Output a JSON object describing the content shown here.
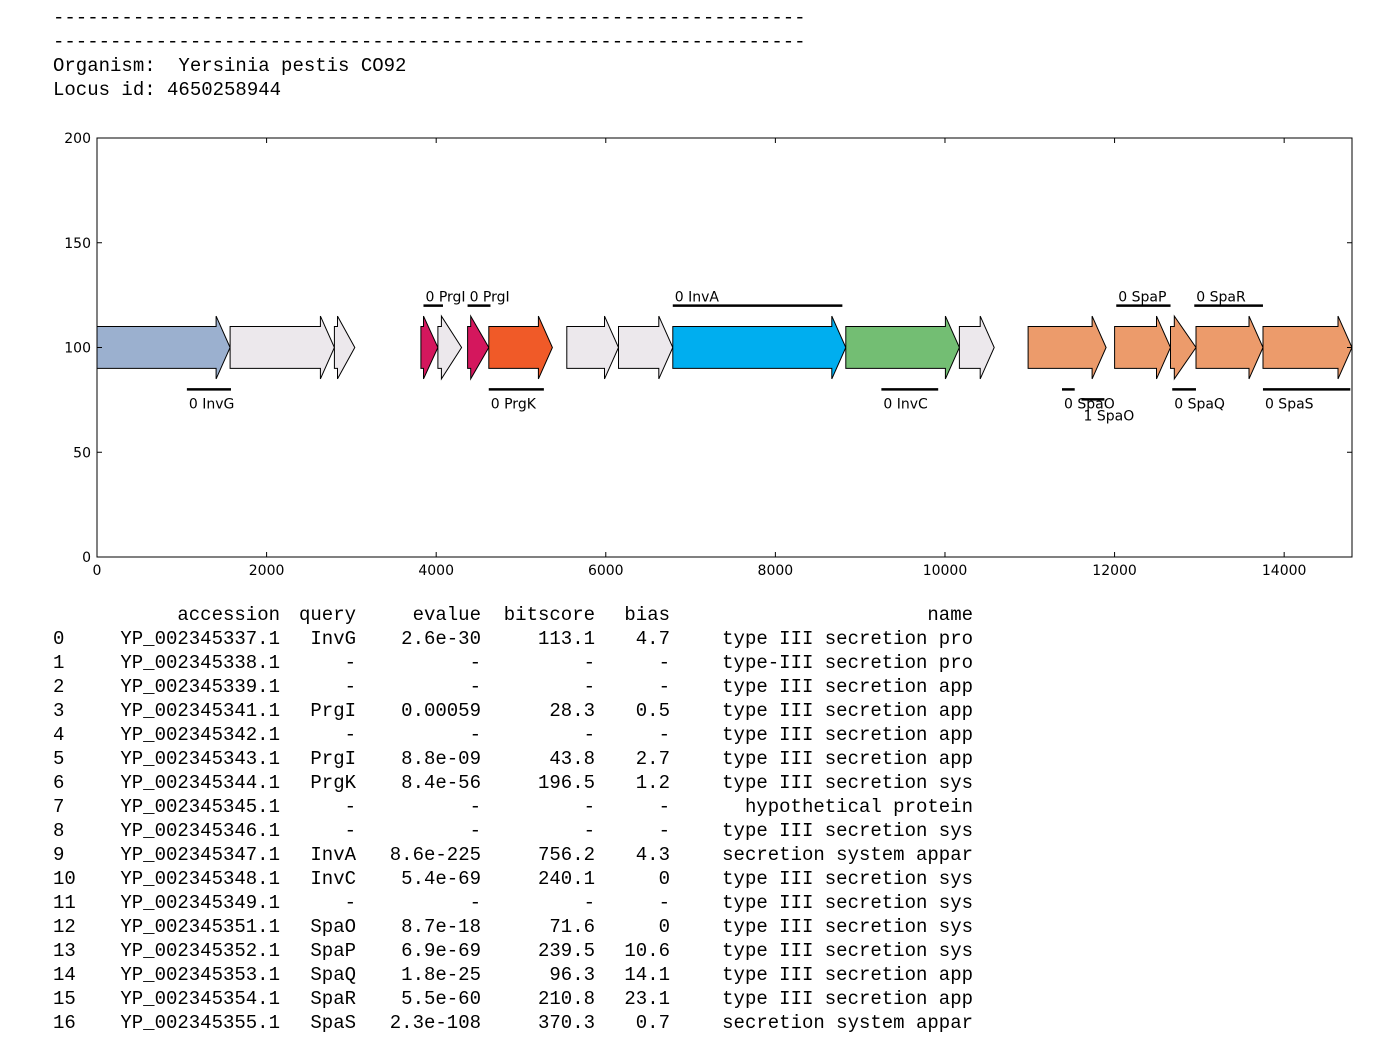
{
  "header": {
    "separator1": "------------------------------------------------------------------",
    "separator2": "------------------------------------------------------------------",
    "organism_line": "Organism:  Yersinia pestis CO92",
    "locus_line": "Locus id: 4650258944"
  },
  "chart_data": {
    "type": "gene-arrow-map",
    "title": "",
    "xlabel": "",
    "ylabel": "",
    "xlim": [
      0,
      14800
    ],
    "ylim": [
      0,
      200
    ],
    "xticks": [
      0,
      2000,
      4000,
      6000,
      8000,
      10000,
      12000,
      14000
    ],
    "yticks": [
      0,
      50,
      100,
      150,
      200
    ],
    "grid": false,
    "genes": [
      {
        "start": 0,
        "end": 1570,
        "color": "#9bb0cf",
        "strand": "+"
      },
      {
        "start": 1570,
        "end": 2800,
        "color": "#ece8ec",
        "strand": "+"
      },
      {
        "start": 2800,
        "end": 3040,
        "color": "#ece8ec",
        "strand": "+"
      },
      {
        "start": 3820,
        "end": 4020,
        "color": "#d4175d",
        "strand": "+"
      },
      {
        "start": 4020,
        "end": 4300,
        "color": "#ece8ec",
        "strand": "+"
      },
      {
        "start": 4370,
        "end": 4620,
        "color": "#d4175d",
        "strand": "+"
      },
      {
        "start": 4620,
        "end": 5370,
        "color": "#f05a28",
        "strand": "+"
      },
      {
        "start": 5540,
        "end": 6150,
        "color": "#ece8ec",
        "strand": "+"
      },
      {
        "start": 6150,
        "end": 6790,
        "color": "#ece8ec",
        "strand": "+"
      },
      {
        "start": 6790,
        "end": 8830,
        "color": "#00aeef",
        "strand": "+"
      },
      {
        "start": 8830,
        "end": 10170,
        "color": "#73be73",
        "strand": "+"
      },
      {
        "start": 10170,
        "end": 10580,
        "color": "#ece8ec",
        "strand": "+"
      },
      {
        "start": 10980,
        "end": 11900,
        "color": "#ec9b6b",
        "strand": "+"
      },
      {
        "start": 12000,
        "end": 12660,
        "color": "#ec9b6b",
        "strand": "+"
      },
      {
        "start": 12660,
        "end": 12960,
        "color": "#ec9b6b",
        "strand": "+"
      },
      {
        "start": 12960,
        "end": 13750,
        "color": "#ec9b6b",
        "strand": "+"
      },
      {
        "start": 13750,
        "end": 14800,
        "color": "#ec9b6b",
        "strand": "+"
      }
    ],
    "domain_hits": [
      {
        "label": "0 InvG",
        "start": 1060,
        "end": 1580,
        "side": "below",
        "row": 0
      },
      {
        "label": "0 PrgI",
        "start": 3850,
        "end": 4080,
        "side": "above",
        "row": 0
      },
      {
        "label": "0 PrgI",
        "start": 4370,
        "end": 4640,
        "side": "above",
        "row": 0
      },
      {
        "label": "0 PrgK",
        "start": 4620,
        "end": 5270,
        "side": "below",
        "row": 0
      },
      {
        "label": "0 InvA",
        "start": 6790,
        "end": 8790,
        "side": "above",
        "row": 0
      },
      {
        "label": "0 InvC",
        "start": 9250,
        "end": 9920,
        "side": "below",
        "row": 0
      },
      {
        "label": "0 SpaO",
        "start": 11380,
        "end": 11530,
        "side": "below",
        "row": 0
      },
      {
        "label": "1 SpaO",
        "start": 11610,
        "end": 11880,
        "side": "below",
        "row": 1
      },
      {
        "label": "0 SpaP",
        "start": 12020,
        "end": 12660,
        "side": "above",
        "row": 0
      },
      {
        "label": "0 SpaR",
        "start": 12940,
        "end": 13750,
        "side": "above",
        "row": 0
      },
      {
        "label": "0 SpaQ",
        "start": 12680,
        "end": 12960,
        "side": "below",
        "row": 0
      },
      {
        "label": "0 SpaS",
        "start": 13750,
        "end": 14780,
        "side": "below",
        "row": 0
      }
    ]
  },
  "table": {
    "columns": [
      "",
      "accession",
      "query",
      "evalue",
      "bitscore",
      "bias",
      "name"
    ],
    "rows": [
      [
        "0",
        "YP_002345337.1",
        "InvG",
        "2.6e-30",
        "113.1",
        "4.7",
        "type III secretion pro"
      ],
      [
        "1",
        "YP_002345338.1",
        "-",
        "-",
        "-",
        "-",
        "type-III secretion pro"
      ],
      [
        "2",
        "YP_002345339.1",
        "-",
        "-",
        "-",
        "-",
        "type III secretion app"
      ],
      [
        "3",
        "YP_002345341.1",
        "PrgI",
        "0.00059",
        "28.3",
        "0.5",
        "type III secretion app"
      ],
      [
        "4",
        "YP_002345342.1",
        "-",
        "-",
        "-",
        "-",
        "type III secretion app"
      ],
      [
        "5",
        "YP_002345343.1",
        "PrgI",
        "8.8e-09",
        "43.8",
        "2.7",
        "type III secretion app"
      ],
      [
        "6",
        "YP_002345344.1",
        "PrgK",
        "8.4e-56",
        "196.5",
        "1.2",
        "type III secretion sys"
      ],
      [
        "7",
        "YP_002345345.1",
        "-",
        "-",
        "-",
        "-",
        "hypothetical protein"
      ],
      [
        "8",
        "YP_002345346.1",
        "-",
        "-",
        "-",
        "-",
        "type III secretion sys"
      ],
      [
        "9",
        "YP_002345347.1",
        "InvA",
        "8.6e-225",
        "756.2",
        "4.3",
        "secretion system appar"
      ],
      [
        "10",
        "YP_002345348.1",
        "InvC",
        "5.4e-69",
        "240.1",
        "0",
        "type III secretion sys"
      ],
      [
        "11",
        "YP_002345349.1",
        "-",
        "-",
        "-",
        "-",
        "type III secretion sys"
      ],
      [
        "12",
        "YP_002345351.1",
        "SpaO",
        "8.7e-18",
        "71.6",
        "0",
        "type III secretion sys"
      ],
      [
        "13",
        "YP_002345352.1",
        "SpaP",
        "6.9e-69",
        "239.5",
        "10.6",
        "type III secretion sys"
      ],
      [
        "14",
        "YP_002345353.1",
        "SpaQ",
        "1.8e-25",
        "96.3",
        "14.1",
        "type III secretion app"
      ],
      [
        "15",
        "YP_002345354.1",
        "SpaR",
        "5.5e-60",
        "210.8",
        "23.1",
        "type III secretion app"
      ],
      [
        "16",
        "YP_002345355.1",
        "SpaS",
        "2.3e-108",
        "370.3",
        "0.7",
        "secretion system appar"
      ]
    ]
  }
}
